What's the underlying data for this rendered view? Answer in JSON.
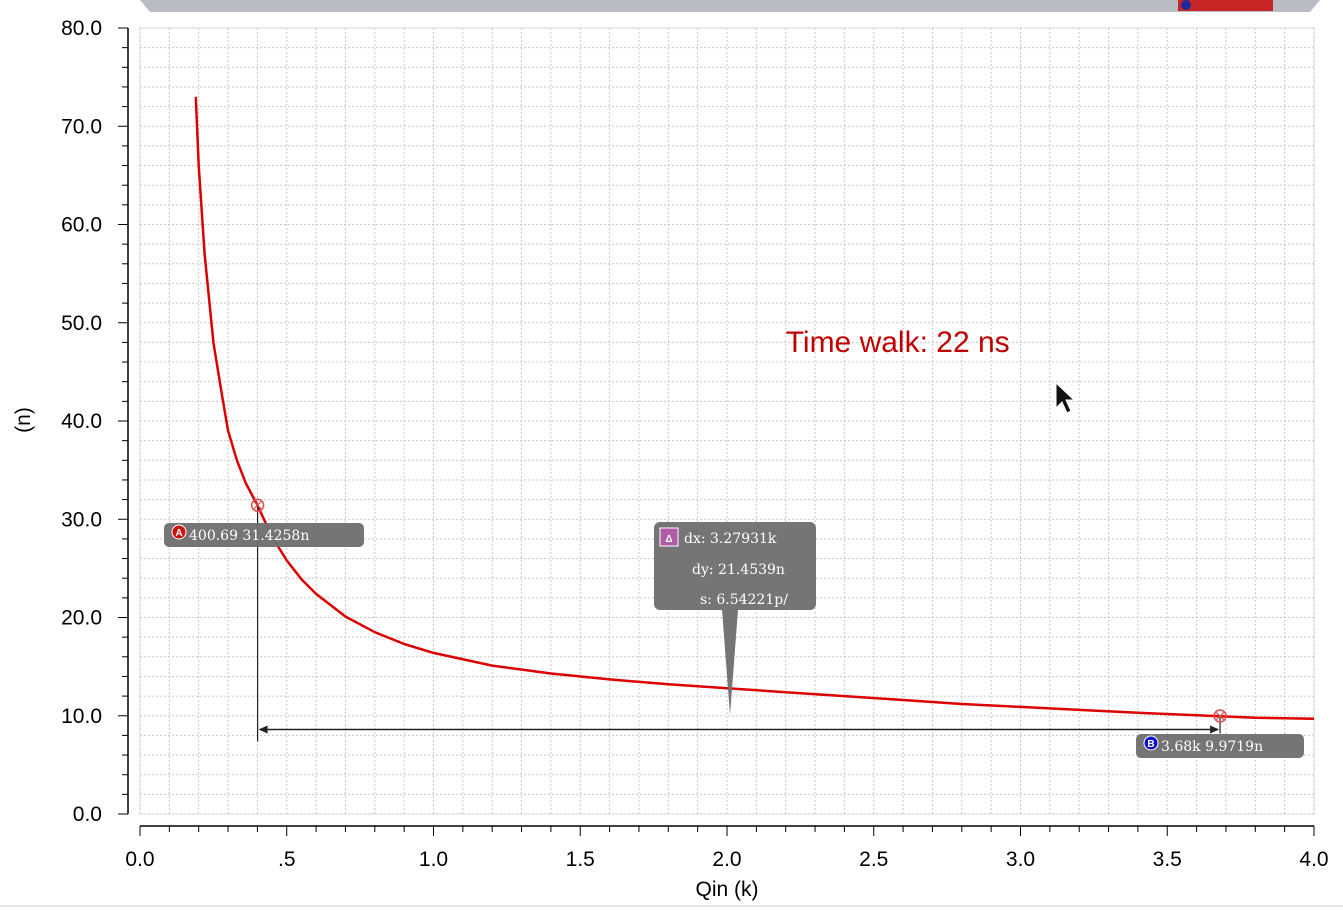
{
  "chart_data": {
    "type": "line",
    "xlabel": "Qin (k)",
    "ylabel": "(n)",
    "xlim": [
      0,
      4
    ],
    "ylim": [
      0,
      80
    ],
    "x_ticks": [
      0,
      0.5,
      1,
      1.5,
      2,
      2.5,
      3,
      3.5,
      4
    ],
    "x_tick_labels": [
      "0.0",
      ".5",
      "1.0",
      "1.5",
      "2.0",
      "2.5",
      "3.0",
      "3.5",
      "4.0"
    ],
    "y_ticks": [
      0,
      10,
      20,
      30,
      40,
      50,
      60,
      70,
      80
    ],
    "y_tick_labels": [
      "0.0",
      "10.0",
      "20.0",
      "30.0",
      "40.0",
      "50.0",
      "60.0",
      "70.0",
      "80.0"
    ],
    "grid": true,
    "series": [
      {
        "color": "#dd0000",
        "x": [
          0.19,
          0.2,
          0.22,
          0.25,
          0.28,
          0.3,
          0.33,
          0.36,
          0.4,
          0.45,
          0.5,
          0.55,
          0.6,
          0.7,
          0.8,
          0.9,
          1.0,
          1.2,
          1.4,
          1.6,
          1.8,
          2.0,
          2.2,
          2.4,
          2.6,
          2.8,
          3.0,
          3.2,
          3.4,
          3.6,
          3.8,
          4.0
        ],
        "y": [
          73.0,
          66.0,
          57.0,
          48.0,
          42.5,
          39.0,
          36.0,
          33.7,
          31.43,
          28.2,
          25.8,
          23.9,
          22.4,
          20.1,
          18.5,
          17.3,
          16.4,
          15.1,
          14.3,
          13.7,
          13.2,
          12.8,
          12.4,
          12.0,
          11.6,
          11.2,
          10.9,
          10.6,
          10.3,
          10.05,
          9.8,
          9.7
        ]
      }
    ],
    "markers": [
      {
        "id": "A",
        "badge_color": "#cc1111",
        "x": 0.40069,
        "y": 31.4258,
        "label": "400.69 31.4258n"
      },
      {
        "id": "B",
        "badge_color": "#1111cc",
        "x": 3.68,
        "y": 9.9719,
        "label": "3.68k 9.9719n"
      }
    ],
    "delta": {
      "badge": "Δ",
      "badge_color": "#b05aa8",
      "dx": "dx: 3.27931k",
      "dy": "dy: 21.4539n",
      "s": "s: 6.54221p/"
    },
    "annotation": {
      "text": "Time walk: 22 ns",
      "color": "#c00000",
      "x": 2.2,
      "y": 47.0
    }
  }
}
